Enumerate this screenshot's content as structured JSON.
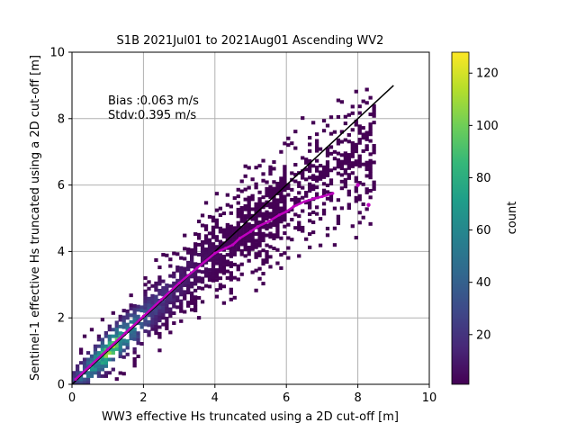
{
  "chart_data": {
    "type": "heatmap",
    "title": "S1B 2021Jul01 to 2021Aug01 Ascending WV2",
    "xlabel": "WW3 effective Hs truncated using a 2D cut-off [m]",
    "ylabel": "Sentinel-1 effective Hs truncated using a 2D cut-off [m]",
    "xlim": [
      0,
      10
    ],
    "ylim": [
      0,
      10
    ],
    "xticks": [
      "0",
      "2",
      "4",
      "6",
      "8",
      "10"
    ],
    "yticks": [
      "0",
      "2",
      "4",
      "6",
      "8",
      "10"
    ],
    "grid": true,
    "annotations": {
      "bias": "Bias :0.063 m/s",
      "stdv": "Stdv:0.395 m/s"
    },
    "colorbar": {
      "label": "count",
      "colormap": "viridis",
      "range": [
        1,
        128
      ],
      "ticks": [
        "20",
        "40",
        "60",
        "80",
        "100",
        "120"
      ],
      "tick_values": [
        20,
        40,
        60,
        80,
        100,
        120
      ]
    },
    "identity_line": {
      "from": [
        0,
        0
      ],
      "to": [
        9,
        9
      ],
      "color": "#000000"
    },
    "binned_mean": {
      "color": "#bf00bf",
      "points": [
        [
          0.1,
          0.15
        ],
        [
          0.5,
          0.55
        ],
        [
          1.0,
          1.05
        ],
        [
          1.5,
          1.55
        ],
        [
          2.0,
          2.05
        ],
        [
          2.5,
          2.55
        ],
        [
          3.0,
          3.05
        ],
        [
          3.5,
          3.5
        ],
        [
          4.0,
          3.95
        ],
        [
          4.3,
          4.1
        ],
        [
          4.5,
          4.2
        ],
        [
          4.7,
          4.4
        ],
        [
          5.0,
          4.6
        ],
        [
          5.2,
          4.75
        ],
        [
          5.5,
          4.9
        ],
        [
          5.8,
          5.1
        ],
        [
          6.0,
          5.2
        ],
        [
          6.2,
          5.35
        ],
        [
          6.5,
          5.5
        ],
        [
          6.8,
          5.6
        ],
        [
          7.0,
          5.65
        ],
        [
          7.3,
          5.75
        ]
      ],
      "isolated": [
        [
          8.0,
          6.0
        ],
        [
          8.3,
          5.4
        ]
      ]
    },
    "density": {
      "bin_size": 0.1,
      "ridge_width": 0.45,
      "spread_growth": 0.09,
      "peak_count": 128,
      "peak_x": 1.1,
      "x_extent": [
        0,
        8.4
      ]
    }
  },
  "colors": {
    "viridis": [
      "#440154",
      "#482878",
      "#3e4989",
      "#31688e",
      "#26828e",
      "#1f9e89",
      "#35b779",
      "#6ece58",
      "#b5de2b",
      "#fde725"
    ],
    "grid": "#b0b0b0"
  }
}
